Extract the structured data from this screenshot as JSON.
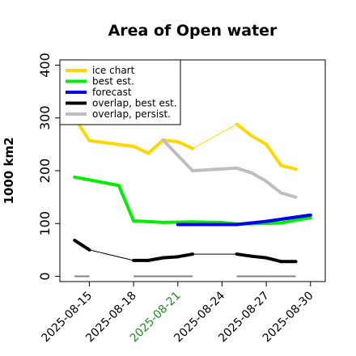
{
  "chart_data": {
    "type": "line",
    "title": "Area of Open water",
    "ylabel": "1000 km2",
    "xlabel": "",
    "ylim": [
      -10,
      410
    ],
    "xlim": [
      "2025-08-13",
      "2025-08-31"
    ],
    "yticks": [
      0,
      100,
      200,
      300,
      400
    ],
    "xticks": [
      "2025-08-15",
      "2025-08-18",
      "2025-08-21",
      "2025-08-24",
      "2025-08-27",
      "2025-08-30"
    ],
    "highlight_xtick": "2025-08-21",
    "highlight_color": "#228b22",
    "legend_position": "top-left",
    "grid": false,
    "series": [
      {
        "name": "ice chart",
        "color": "#ffd700",
        "style": "thick",
        "points": [
          [
            "2025-08-14",
            300
          ],
          [
            "2025-08-15",
            257
          ],
          [
            "2025-08-18",
            246
          ],
          [
            "2025-08-19",
            233
          ],
          [
            "2025-08-20",
            258
          ],
          [
            "2025-08-21",
            255
          ],
          [
            "2025-08-22",
            242
          ],
          [
            "2025-08-25",
            288
          ],
          [
            "2025-08-26",
            266
          ],
          [
            "2025-08-27",
            250
          ],
          [
            "2025-08-28",
            210
          ],
          [
            "2025-08-29",
            203
          ]
        ],
        "thin_segments": [
          [
            "2025-08-22",
            "2025-08-25"
          ]
        ]
      },
      {
        "name": "best est.",
        "color": "#00ee00",
        "style": "thick",
        "points": [
          [
            "2025-08-14",
            188
          ],
          [
            "2025-08-17",
            172
          ],
          [
            "2025-08-18",
            105
          ],
          [
            "2025-08-20",
            102
          ],
          [
            "2025-08-22",
            103
          ],
          [
            "2025-08-24",
            102
          ],
          [
            "2025-08-25",
            99
          ],
          [
            "2025-08-28",
            101
          ],
          [
            "2025-08-30",
            111
          ]
        ]
      },
      {
        "name": "forecast",
        "color": "#0000ee",
        "style": "thick",
        "points": [
          [
            "2025-08-21",
            98
          ],
          [
            "2025-08-25",
            98
          ],
          [
            "2025-08-27",
            104
          ],
          [
            "2025-08-29",
            112
          ],
          [
            "2025-08-30",
            116
          ]
        ]
      },
      {
        "name": "overlap, best est.",
        "color": "#000000",
        "style": "mixed",
        "points": [
          [
            "2025-08-14",
            68
          ],
          [
            "2025-08-15",
            50
          ],
          [
            "2025-08-18",
            30
          ],
          [
            "2025-08-19",
            30
          ],
          [
            "2025-08-20",
            35
          ],
          [
            "2025-08-21",
            37
          ],
          [
            "2025-08-22",
            42
          ],
          [
            "2025-08-25",
            42
          ],
          [
            "2025-08-26",
            38
          ],
          [
            "2025-08-27",
            35
          ],
          [
            "2025-08-28",
            28
          ],
          [
            "2025-08-29",
            28
          ]
        ],
        "thin_segments": [
          [
            "2025-08-15",
            "2025-08-18"
          ],
          [
            "2025-08-22",
            "2025-08-25"
          ]
        ]
      },
      {
        "name": "overlap, persist.",
        "color": "#bebebe",
        "style": "thick",
        "points": [
          [
            "2025-08-20",
            258
          ],
          [
            "2025-08-22",
            200
          ],
          [
            "2025-08-25",
            205
          ],
          [
            "2025-08-26",
            196
          ],
          [
            "2025-08-27",
            180
          ],
          [
            "2025-08-28",
            158
          ],
          [
            "2025-08-29",
            150
          ]
        ]
      }
    ],
    "zero_markers": [
      {
        "from": "2025-08-14",
        "to": "2025-08-15"
      },
      {
        "from": "2025-08-18",
        "to": "2025-08-22"
      },
      {
        "from": "2025-08-25",
        "to": "2025-08-29"
      }
    ],
    "zero_marker_color": "#808080"
  }
}
